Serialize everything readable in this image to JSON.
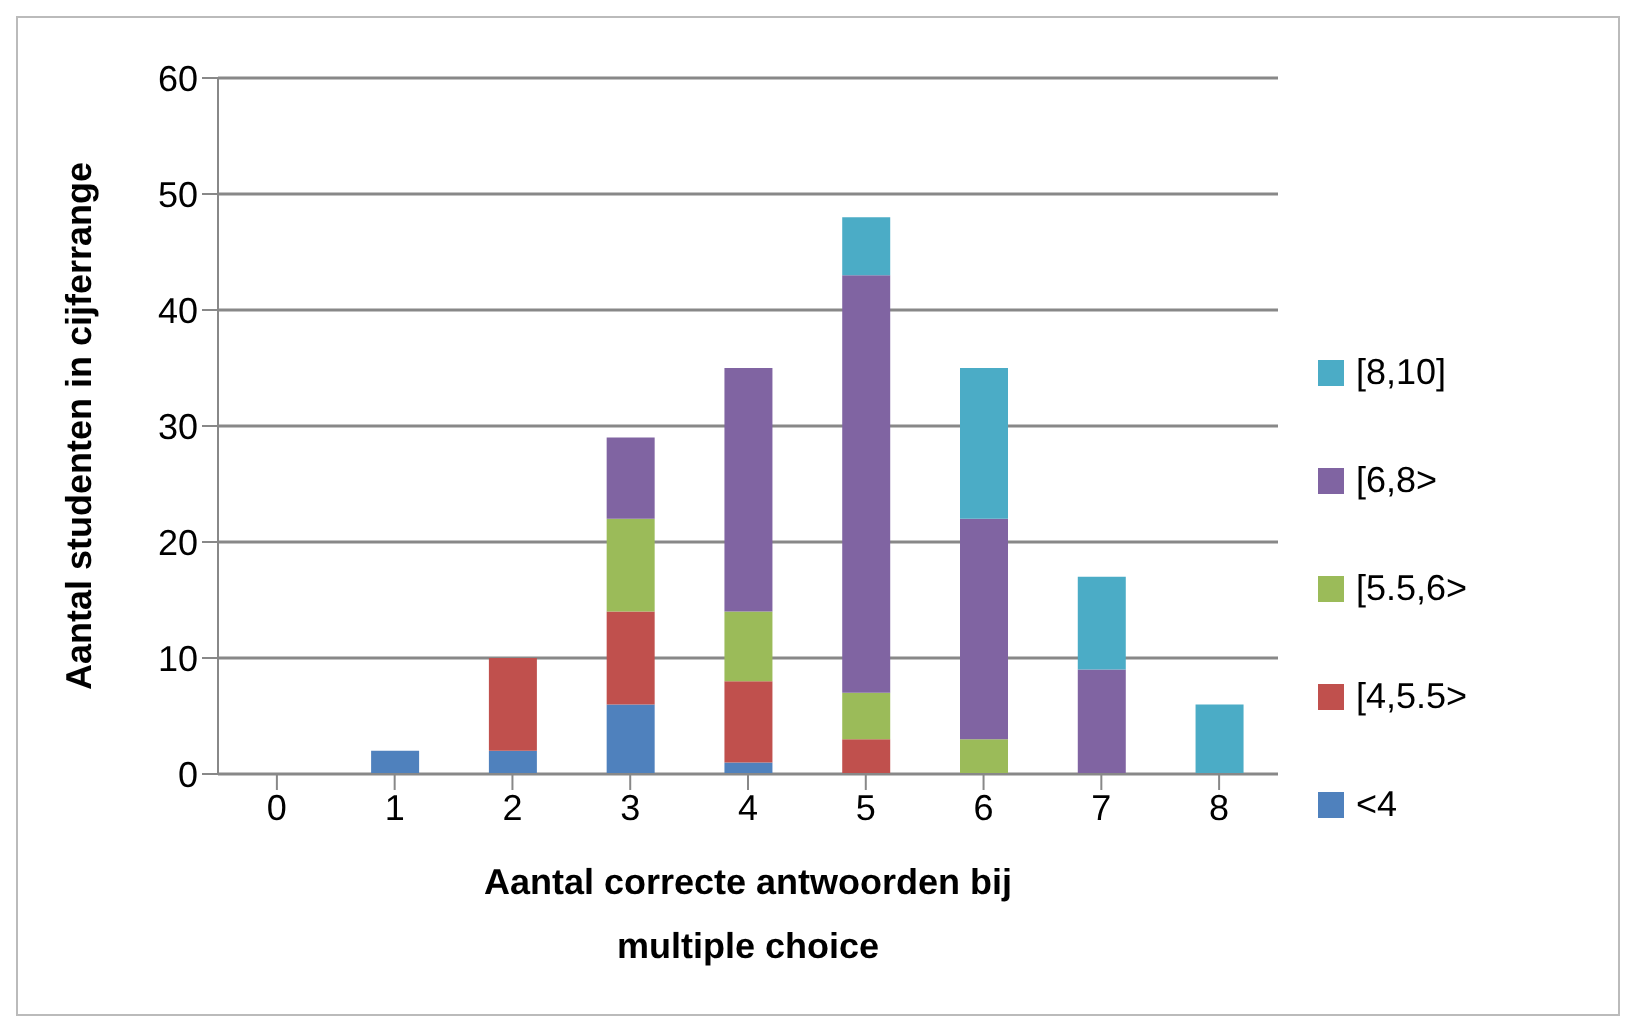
{
  "chart_data": {
    "type": "bar",
    "stacked": true,
    "xlabel": "Aantal correcte antwoorden bij multiple choice",
    "ylabel": "Aantal studenten in cijferrange",
    "categories": [
      "0",
      "1",
      "2",
      "3",
      "4",
      "5",
      "6",
      "7",
      "8"
    ],
    "series": [
      {
        "name": "<4",
        "color": "#4f81bd",
        "values": [
          0,
          2,
          2,
          6,
          1,
          0,
          0,
          0,
          0
        ]
      },
      {
        "name": "[4,5.5>",
        "color": "#c0504d",
        "values": [
          0,
          0,
          8,
          8,
          7,
          3,
          0,
          0,
          0
        ]
      },
      {
        "name": "[5.5,6>",
        "color": "#9bbb59",
        "values": [
          0,
          0,
          0,
          8,
          6,
          4,
          3,
          0,
          0
        ]
      },
      {
        "name": "[6,8>",
        "color": "#8064a2",
        "values": [
          0,
          0,
          0,
          7,
          21,
          36,
          19,
          9,
          0
        ]
      },
      {
        "name": "[8,10]",
        "color": "#4bacc6",
        "values": [
          0,
          0,
          0,
          0,
          0,
          5,
          13,
          8,
          6
        ]
      }
    ],
    "ylim": [
      0,
      60
    ],
    "yticks": [
      0,
      10,
      20,
      30,
      40,
      50,
      60
    ],
    "grid": "y",
    "legend": "right"
  }
}
